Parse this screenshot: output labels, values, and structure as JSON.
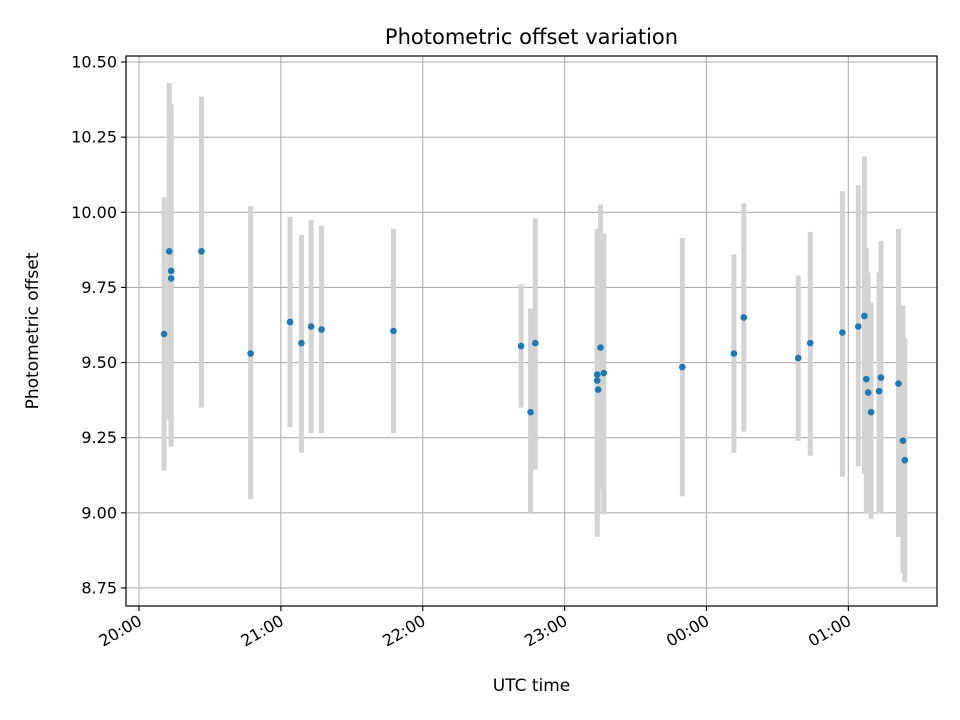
{
  "chart_data": {
    "type": "scatter",
    "title": "Photometric offset variation",
    "xlabel": "UTC time",
    "ylabel": "Photometric offset",
    "x_tick_labels": [
      "20:00",
      "21:00",
      "22:00",
      "23:00",
      "00:00",
      "01:00"
    ],
    "x_tick_values": [
      0,
      60,
      120,
      180,
      240,
      300
    ],
    "y_tick_labels": [
      "8.75",
      "9.00",
      "9.25",
      "9.50",
      "9.75",
      "10.00",
      "10.25",
      "10.50"
    ],
    "y_tick_values": [
      8.75,
      9.0,
      9.25,
      9.5,
      9.75,
      10.0,
      10.25,
      10.5
    ],
    "xlim": [
      -5.5,
      337.5
    ],
    "ylim": [
      8.69,
      10.52
    ],
    "grid": true,
    "colors": {
      "point": "#1f77b4",
      "errorbar": "#d3d3d3",
      "grid": "#b0b0b0"
    },
    "points": [
      {
        "x": 10.6,
        "y": 9.595,
        "ylo": 9.14,
        "yhi": 10.05
      },
      {
        "x": 12.8,
        "y": 9.87,
        "ylo": 9.31,
        "yhi": 10.43
      },
      {
        "x": 13.6,
        "y": 9.805,
        "ylo": 9.25,
        "yhi": 10.36
      },
      {
        "x": 13.6,
        "y": 9.78,
        "ylo": 9.22,
        "yhi": 10.34
      },
      {
        "x": 26.4,
        "y": 9.87,
        "ylo": 9.35,
        "yhi": 10.385
      },
      {
        "x": 47.2,
        "y": 9.53,
        "ylo": 9.045,
        "yhi": 10.02
      },
      {
        "x": 63.9,
        "y": 9.635,
        "ylo": 9.285,
        "yhi": 9.985
      },
      {
        "x": 68.7,
        "y": 9.565,
        "ylo": 9.2,
        "yhi": 9.925
      },
      {
        "x": 72.8,
        "y": 9.62,
        "ylo": 9.265,
        "yhi": 9.975
      },
      {
        "x": 77.2,
        "y": 9.61,
        "ylo": 9.265,
        "yhi": 9.955
      },
      {
        "x": 107.6,
        "y": 9.605,
        "ylo": 9.265,
        "yhi": 9.945
      },
      {
        "x": 161.6,
        "y": 9.555,
        "ylo": 9.35,
        "yhi": 9.76
      },
      {
        "x": 165.6,
        "y": 9.335,
        "ylo": 9.0,
        "yhi": 9.68
      },
      {
        "x": 167.6,
        "y": 9.565,
        "ylo": 9.145,
        "yhi": 9.98
      },
      {
        "x": 193.8,
        "y": 9.46,
        "ylo": 8.975,
        "yhi": 9.945
      },
      {
        "x": 193.8,
        "y": 9.44,
        "ylo": 8.92,
        "yhi": 9.94
      },
      {
        "x": 194.2,
        "y": 9.41,
        "ylo": 9.0,
        "yhi": 9.9
      },
      {
        "x": 195.2,
        "y": 9.55,
        "ylo": 9.08,
        "yhi": 10.025
      },
      {
        "x": 196.6,
        "y": 9.465,
        "ylo": 8.995,
        "yhi": 9.93
      },
      {
        "x": 229.8,
        "y": 9.485,
        "ylo": 9.055,
        "yhi": 9.915
      },
      {
        "x": 251.6,
        "y": 9.53,
        "ylo": 9.2,
        "yhi": 9.86
      },
      {
        "x": 255.8,
        "y": 9.65,
        "ylo": 9.27,
        "yhi": 10.03
      },
      {
        "x": 278.8,
        "y": 9.515,
        "ylo": 9.24,
        "yhi": 9.79
      },
      {
        "x": 283.9,
        "y": 9.565,
        "ylo": 9.19,
        "yhi": 9.935
      },
      {
        "x": 297.5,
        "y": 9.6,
        "ylo": 9.12,
        "yhi": 10.07
      },
      {
        "x": 304.2,
        "y": 9.62,
        "ylo": 9.155,
        "yhi": 10.09
      },
      {
        "x": 306.8,
        "y": 9.655,
        "ylo": 9.13,
        "yhi": 10.185
      },
      {
        "x": 307.6,
        "y": 9.445,
        "ylo": 9.0,
        "yhi": 9.88
      },
      {
        "x": 308.4,
        "y": 9.4,
        "ylo": 9.0,
        "yhi": 9.8
      },
      {
        "x": 309.6,
        "y": 9.335,
        "ylo": 8.98,
        "yhi": 9.7
      },
      {
        "x": 313.0,
        "y": 9.405,
        "ylo": 9.0,
        "yhi": 9.8
      },
      {
        "x": 313.8,
        "y": 9.45,
        "ylo": 9.0,
        "yhi": 9.905
      },
      {
        "x": 321.2,
        "y": 9.43,
        "ylo": 8.92,
        "yhi": 9.945
      },
      {
        "x": 323.1,
        "y": 9.24,
        "ylo": 8.8,
        "yhi": 9.69
      },
      {
        "x": 323.9,
        "y": 9.175,
        "ylo": 8.77,
        "yhi": 9.58
      }
    ]
  }
}
